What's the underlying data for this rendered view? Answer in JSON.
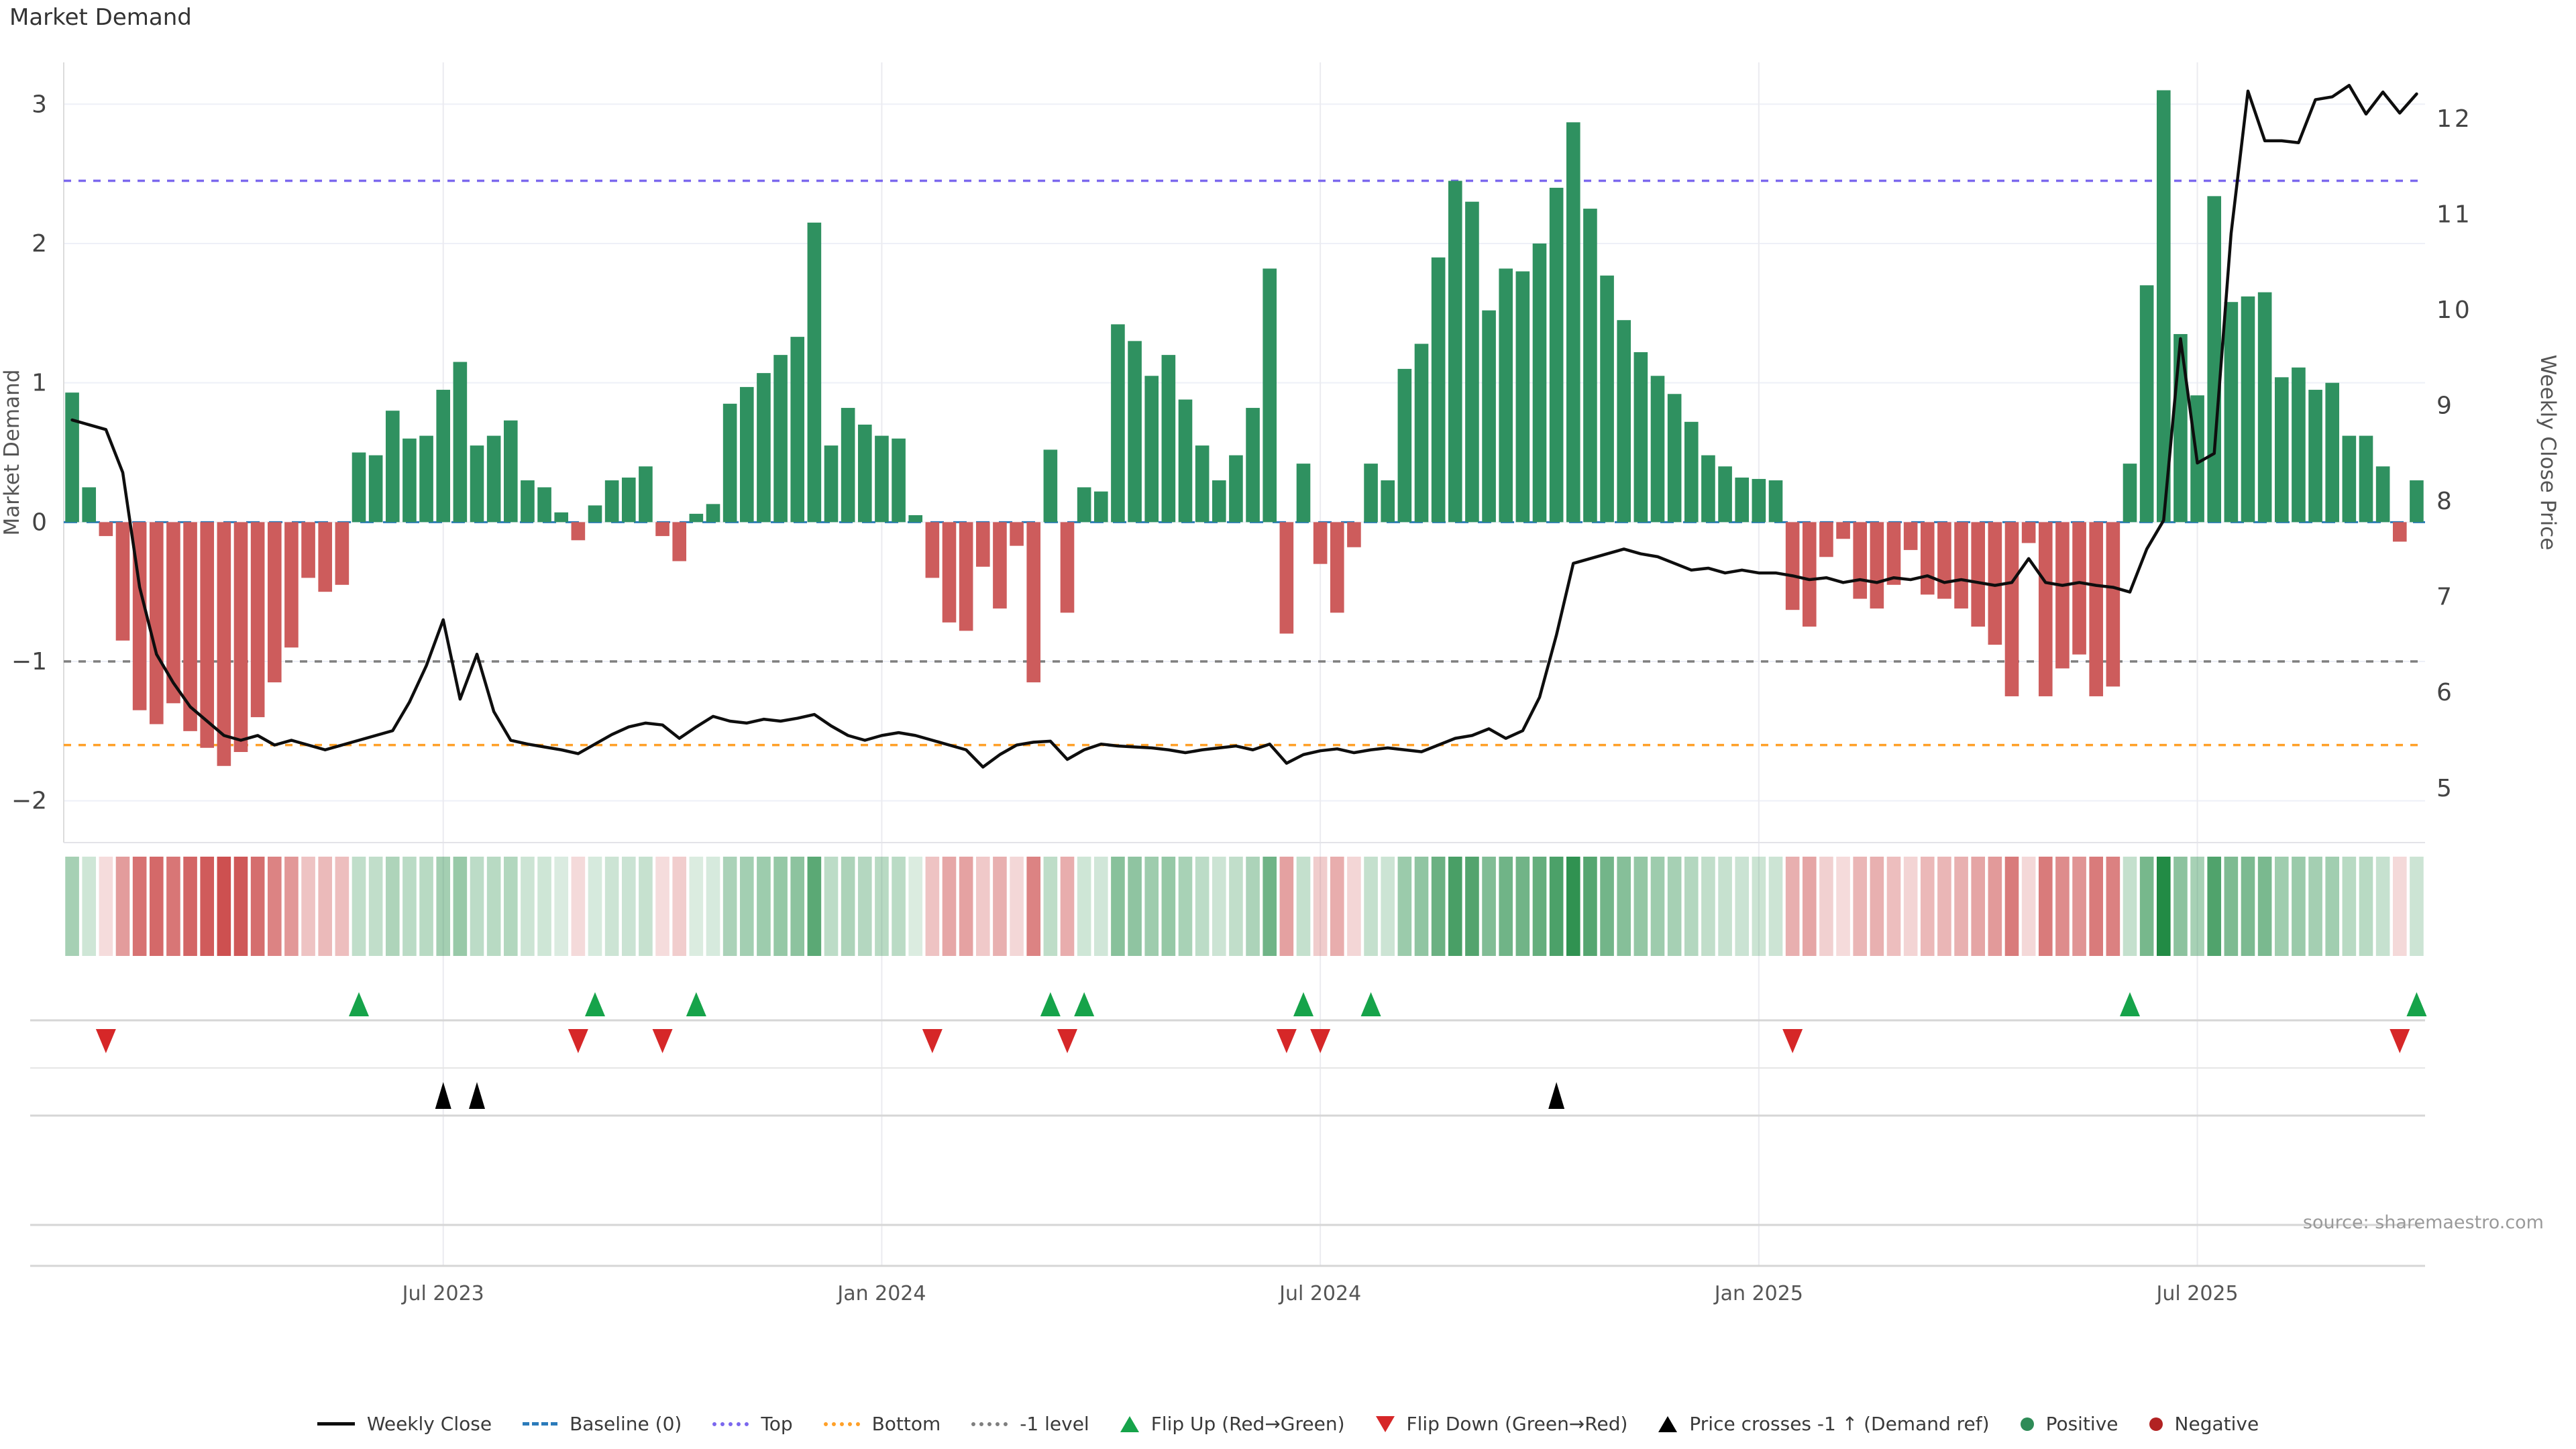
{
  "title": "Market Demand",
  "source_text": "source: sharemaestro.com",
  "axes": {
    "left_label": "Market Demand",
    "right_label": "Weekly Close Price"
  },
  "colors": {
    "bar_positive": "#2f9160",
    "bar_negative": "#cd5c5c",
    "price_line": "#0e0e0e",
    "baseline": "#2b7bba",
    "top_line": "#7b68ee",
    "bottom_line": "#ffa028",
    "minus1_line": "#7f7f7f",
    "flip_up": "#16a34a",
    "flip_down": "#d62728",
    "price_cross": "#000000",
    "grid_h": "#eef0f7",
    "grid_v": "#ebebf0",
    "separator": "#d6d6d6",
    "separator_faint": "#e6e6e6",
    "tick_text": "#444444",
    "muted_text": "#9a9a9a",
    "heat_pos": "#228b45",
    "heat_neg": "#cd5050"
  },
  "legend": {
    "items": [
      {
        "label": "Weekly Close",
        "type": "line",
        "color": "#0e0e0e"
      },
      {
        "label": "Baseline (0)",
        "type": "dash",
        "color": "#2b7bba"
      },
      {
        "label": "Top",
        "type": "dot",
        "color": "#7b68ee"
      },
      {
        "label": "Bottom",
        "type": "dot",
        "color": "#ffa028"
      },
      {
        "label": "-1 level",
        "type": "dot",
        "color": "#7f7f7f"
      },
      {
        "label": "Flip Up (Red→Green)",
        "type": "tri-up",
        "color": "#16a34a"
      },
      {
        "label": "Flip Down (Green→Red)",
        "type": "tri-down",
        "color": "#d62728"
      },
      {
        "label": "Price crosses -1 ↑ (Demand ref)",
        "type": "tri-up",
        "color": "#000000"
      },
      {
        "label": "Positive",
        "type": "circle",
        "color": "#2e8b57"
      },
      {
        "label": "Negative",
        "type": "circle",
        "color": "#b22222"
      }
    ]
  },
  "chart_data": {
    "type": "bar",
    "subtype": "bar+line+heatmap+event-markers",
    "title": "Market Demand",
    "xlabel": "",
    "ylabel_left": "Market Demand",
    "ylabel_right": "Weekly Close Price",
    "n_weeks": 140,
    "demand_ylim": [
      -2.3,
      3.3
    ],
    "price_ylim": [
      4.43,
      12.59
    ],
    "grid": true,
    "legend_position": "bottom-center",
    "left_ticks": [
      {
        "v": 3,
        "label": "3"
      },
      {
        "v": 2,
        "label": "2"
      },
      {
        "v": 1,
        "label": "1"
      },
      {
        "v": 0,
        "label": "0"
      },
      {
        "v": -1,
        "label": "−1"
      },
      {
        "v": -2,
        "label": "−2"
      }
    ],
    "right_ticks": [
      {
        "v": 12,
        "label": "12"
      },
      {
        "v": 11,
        "label": "11"
      },
      {
        "v": 10,
        "label": "10"
      },
      {
        "v": 9,
        "label": "9"
      },
      {
        "v": 8,
        "label": "8"
      },
      {
        "v": 7,
        "label": "7"
      },
      {
        "v": 6,
        "label": "6"
      },
      {
        "v": 5,
        "label": "5"
      }
    ],
    "x_ticks": [
      {
        "week": 22,
        "label": "Jul 2023"
      },
      {
        "week": 48,
        "label": "Jan 2024"
      },
      {
        "week": 74,
        "label": "Jul 2024"
      },
      {
        "week": 100,
        "label": "Jan 2025"
      },
      {
        "week": 126,
        "label": "Jul 2025"
      }
    ],
    "ref_lines": [
      {
        "name": "Baseline (0)",
        "value": 0,
        "color": "#2b7bba",
        "dash": "20 14",
        "width": 3
      },
      {
        "name": "Top",
        "value": 2.45,
        "color": "#7b68ee",
        "dash": "11 11",
        "width": 3.5
      },
      {
        "name": "-1 level",
        "value": -1,
        "color": "#7f7f7f",
        "dash": "11 11",
        "width": 3.5
      },
      {
        "name": "Bottom",
        "value": -1.6,
        "color": "#ffa028",
        "dash": "11 11",
        "width": 3.5
      }
    ],
    "series": [
      {
        "name": "Market Demand",
        "type": "bar",
        "axis": "left",
        "values": [
          0.93,
          0.25,
          -0.1,
          -0.85,
          -1.35,
          -1.45,
          -1.3,
          -1.5,
          -1.62,
          -1.75,
          -1.65,
          -1.4,
          -1.15,
          -0.9,
          -0.4,
          -0.5,
          -0.45,
          0.5,
          0.48,
          0.8,
          0.6,
          0.62,
          0.95,
          1.15,
          0.55,
          0.62,
          0.73,
          0.3,
          0.25,
          0.07,
          -0.13,
          0.12,
          0.3,
          0.32,
          0.4,
          -0.1,
          -0.28,
          0.06,
          0.13,
          0.85,
          0.97,
          1.07,
          1.2,
          1.33,
          2.15,
          0.55,
          0.82,
          0.7,
          0.62,
          0.6,
          0.05,
          -0.4,
          -0.72,
          -0.78,
          -0.32,
          -0.62,
          -0.17,
          -1.15,
          0.52,
          -0.65,
          0.25,
          0.22,
          1.42,
          1.3,
          1.05,
          1.2,
          0.88,
          0.55,
          0.3,
          0.48,
          0.82,
          1.82,
          -0.8,
          0.42,
          -0.3,
          -0.65,
          -0.18,
          0.42,
          0.3,
          1.1,
          1.28,
          1.9,
          2.45,
          2.3,
          1.52,
          1.82,
          1.8,
          2.0,
          2.4,
          2.87,
          2.25,
          1.77,
          1.45,
          1.22,
          1.05,
          0.92,
          0.72,
          0.48,
          0.4,
          0.32,
          0.31,
          0.3,
          -0.63,
          -0.75,
          -0.25,
          -0.12,
          -0.55,
          -0.62,
          -0.45,
          -0.2,
          -0.52,
          -0.55,
          -0.62,
          -0.75,
          -0.88,
          -1.25,
          -0.15,
          -1.25,
          -1.05,
          -0.95,
          -1.25,
          -1.18,
          0.42,
          1.7,
          3.1,
          1.35,
          0.91,
          2.34,
          1.58,
          1.62,
          1.65,
          1.04,
          1.11,
          0.95,
          1.0,
          0.62,
          0.62,
          0.4,
          -0.14,
          0.3
        ]
      },
      {
        "name": "Weekly Close",
        "type": "line",
        "axis": "right",
        "values": [
          8.85,
          8.8,
          8.75,
          8.3,
          7.1,
          6.4,
          6.1,
          5.85,
          5.7,
          5.55,
          5.5,
          5.55,
          5.45,
          5.5,
          5.45,
          5.4,
          5.45,
          5.5,
          5.55,
          5.6,
          5.9,
          6.28,
          6.76,
          5.93,
          6.4,
          5.8,
          5.5,
          5.46,
          5.43,
          5.4,
          5.36,
          5.46,
          5.56,
          5.64,
          5.68,
          5.66,
          5.52,
          5.64,
          5.75,
          5.7,
          5.68,
          5.72,
          5.7,
          5.73,
          5.77,
          5.65,
          5.55,
          5.5,
          5.55,
          5.58,
          5.55,
          5.5,
          5.45,
          5.4,
          5.22,
          5.35,
          5.45,
          5.48,
          5.49,
          5.3,
          5.4,
          5.46,
          5.44,
          5.43,
          5.42,
          5.4,
          5.37,
          5.4,
          5.42,
          5.44,
          5.4,
          5.46,
          5.26,
          5.35,
          5.39,
          5.41,
          5.37,
          5.4,
          5.42,
          5.4,
          5.38,
          5.45,
          5.52,
          5.55,
          5.62,
          5.52,
          5.6,
          5.95,
          6.6,
          7.35,
          7.4,
          7.45,
          7.5,
          7.45,
          7.42,
          7.35,
          7.28,
          7.3,
          7.25,
          7.28,
          7.25,
          7.25,
          7.22,
          7.18,
          7.2,
          7.15,
          7.18,
          7.15,
          7.2,
          7.18,
          7.22,
          7.15,
          7.18,
          7.15,
          7.12,
          7.15,
          7.4,
          7.15,
          7.12,
          7.15,
          7.12,
          7.1,
          7.05,
          7.5,
          7.8,
          9.7,
          8.4,
          8.5,
          10.8,
          12.29,
          11.77,
          11.77,
          11.75,
          12.2,
          12.23,
          12.35,
          12.05,
          12.28,
          12.06,
          12.26
        ]
      }
    ],
    "heatmap": {
      "from_series": "Market Demand",
      "max_pos": 3.1,
      "max_neg": 1.75
    },
    "markers": {
      "flip_up_weeks": [
        17,
        31,
        37,
        58,
        60,
        73,
        77,
        122,
        139
      ],
      "flip_down_weeks": [
        2,
        30,
        35,
        51,
        59,
        72,
        74,
        102,
        138
      ],
      "price_cross_weeks": [
        22,
        24,
        88
      ]
    }
  }
}
